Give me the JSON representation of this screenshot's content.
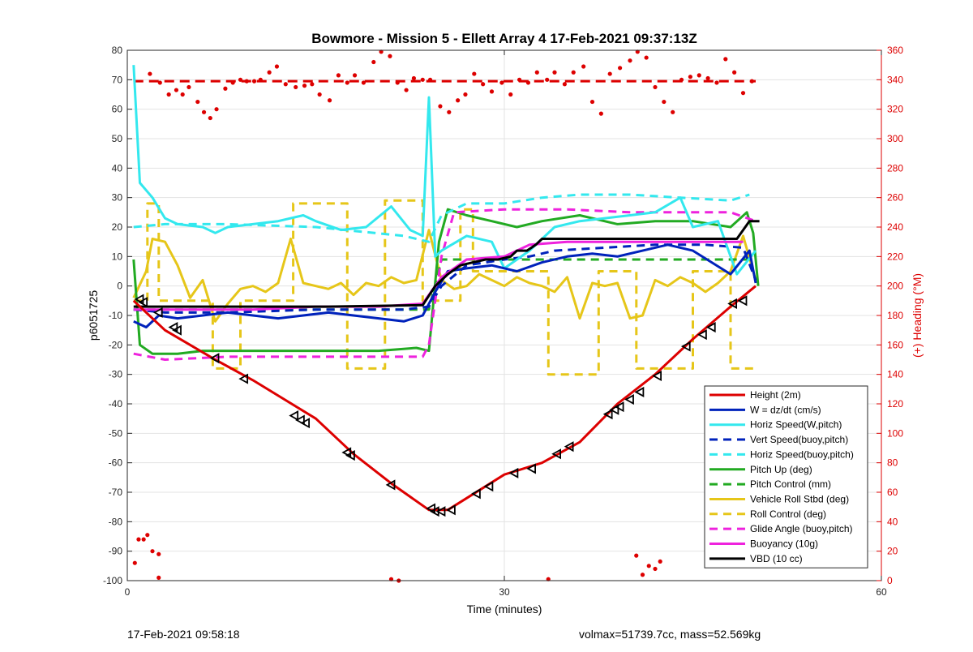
{
  "chart_data": {
    "type": "line",
    "title": "Bowmore - Mission 5 - Ellett Array 4 17-Feb-2021 09:37:13Z",
    "xlabel": "Time (minutes)",
    "ylabel_left": "p6051725",
    "ylabel_right": "(+) Heading (°M)",
    "xlim": [
      0,
      60
    ],
    "ylim_left": [
      -100,
      80
    ],
    "ylim_right": [
      0,
      360
    ],
    "x_ticks": [
      0,
      30,
      60
    ],
    "y_ticks_left": [
      -100,
      -90,
      -80,
      -70,
      -60,
      -50,
      -40,
      -30,
      -20,
      -10,
      0,
      10,
      20,
      30,
      40,
      50,
      60,
      70,
      80
    ],
    "y_ticks_right": [
      0,
      20,
      40,
      60,
      80,
      100,
      120,
      140,
      160,
      180,
      200,
      220,
      240,
      260,
      280,
      300,
      320,
      340,
      360
    ],
    "grid": true,
    "legend_position": "bottom-right",
    "series": [
      {
        "name": "Height (2m)",
        "color": "#dd0000",
        "style": "solid",
        "x": [
          0.5,
          3,
          7,
          10,
          15,
          18,
          21,
          24,
          25.5,
          27,
          30,
          33,
          36,
          39,
          42,
          45,
          48,
          50
        ],
        "y": [
          -5,
          -15,
          -25,
          -32,
          -45,
          -57,
          -67,
          -76,
          -76,
          -72,
          -64,
          -60,
          -53,
          -40,
          -30,
          -18,
          -7,
          0
        ]
      },
      {
        "name": "W = dz/dt (cm/s)",
        "color": "#0022bb",
        "style": "solid",
        "x": [
          0.5,
          1.5,
          2.5,
          4,
          6,
          8,
          10,
          12,
          14,
          16,
          18,
          20,
          22,
          23.5,
          24.5,
          25.5,
          27,
          29,
          31,
          33,
          35,
          37,
          39,
          41,
          43,
          45,
          46.5,
          48,
          49.5,
          50
        ],
        "y": [
          -12,
          -14,
          -10,
          -11,
          -10,
          -9,
          -10,
          -11,
          -10,
          -9,
          -10,
          -11,
          -12,
          -10,
          -2,
          5,
          6,
          7,
          5,
          8,
          10,
          11,
          10,
          12,
          14,
          12,
          8,
          4,
          12,
          1
        ]
      },
      {
        "name": "Horiz Speed(W,pitch)",
        "color": "#33e8ee",
        "style": "solid",
        "x": [
          0.5,
          1,
          2,
          3,
          4,
          6,
          7,
          8,
          10,
          12,
          14,
          15,
          17,
          19,
          21,
          22.5,
          23.5,
          24,
          24.5,
          25,
          27,
          29,
          30,
          32,
          34,
          36,
          38,
          40,
          42,
          44,
          45,
          47,
          48.5,
          50
        ],
        "y": [
          75,
          35,
          30,
          23,
          21,
          20,
          18,
          20,
          21,
          22,
          24,
          22,
          19,
          20,
          27,
          19,
          17,
          64,
          10,
          12,
          17,
          15,
          6,
          12,
          20,
          22,
          23,
          24,
          25,
          30,
          20,
          22,
          4,
          12
        ]
      },
      {
        "name": "Vert Speed(buoy,pitch)",
        "color": "#0022bb",
        "style": "dashed",
        "x": [
          0.5,
          3,
          8,
          15,
          22,
          24,
          25,
          27,
          30,
          32,
          34,
          38,
          42,
          46,
          49,
          50
        ],
        "y": [
          -8,
          -9,
          -9,
          -8,
          -8,
          -7,
          0,
          7,
          9,
          10,
          12,
          13,
          14,
          14,
          13,
          2
        ]
      },
      {
        "name": "Horiz Speed(buoy,pitch)",
        "color": "#33e8ee",
        "style": "dashed",
        "x": [
          0.5,
          3,
          8,
          15,
          22,
          24,
          25,
          27,
          30,
          33,
          36,
          40,
          44,
          48,
          49.5
        ],
        "y": [
          20,
          21,
          21,
          20,
          17,
          15,
          24,
          28,
          28,
          30,
          31,
          31,
          30,
          29,
          31
        ]
      },
      {
        "name": "Pitch Up (deg)",
        "color": "#22aa22",
        "style": "solid",
        "x": [
          0.5,
          1,
          2,
          4,
          6,
          8,
          12,
          16,
          20,
          23,
          24,
          24.8,
          25.5,
          27,
          29,
          31,
          33,
          36,
          39,
          42,
          45,
          48,
          49.3,
          49.8,
          50.2
        ],
        "y": [
          9,
          -20,
          -23,
          -23,
          -22,
          -22,
          -22,
          -22,
          -22,
          -21,
          -22,
          15,
          26,
          24,
          22,
          20,
          22,
          24,
          21,
          22,
          22,
          20,
          25,
          18,
          0
        ]
      },
      {
        "name": "Pitch Control (mm)",
        "color": "#22aa22",
        "style": "dashed",
        "x": [
          0.5,
          24,
          25,
          35,
          50
        ],
        "y": [
          -8,
          -8,
          9,
          9,
          9
        ]
      },
      {
        "name": "Vehicle Roll Stbd (deg)",
        "color": "#e6c619",
        "style": "solid",
        "x": [
          0.5,
          1.5,
          2,
          3,
          4,
          5,
          6,
          7,
          8,
          9,
          10,
          11,
          12,
          13,
          14,
          15,
          16,
          17,
          18,
          19,
          20,
          21,
          22,
          23,
          24,
          25,
          26,
          27,
          28,
          29,
          30,
          31,
          32,
          33,
          34,
          35,
          36,
          37,
          38,
          39,
          40,
          41,
          42,
          43,
          44,
          45,
          46,
          47,
          48,
          49,
          50
        ],
        "y": [
          -4,
          5,
          16,
          15,
          7,
          -4,
          2,
          -12,
          -6,
          -1,
          0,
          -2,
          1,
          16,
          1,
          0,
          -1,
          1,
          -3,
          1,
          0,
          3,
          1,
          2,
          19,
          2,
          -1,
          0,
          4,
          2,
          0,
          3,
          1,
          0,
          -2,
          3,
          -11,
          1,
          0,
          1,
          -11,
          -10,
          2,
          0,
          3,
          1,
          -2,
          1,
          5,
          17,
          2
        ]
      },
      {
        "name": "Roll Control (deg)",
        "color": "#e6c619",
        "style": "dashed",
        "x": [
          0.5,
          1.6,
          1.6,
          2.5,
          2.5,
          6.8,
          6.8,
          9,
          9,
          13.2,
          13.2,
          17.5,
          17.5,
          20.5,
          20.5,
          23.5,
          23.5,
          26.5,
          26.5,
          27.5,
          27.5,
          33.5,
          33.5,
          37.5,
          37.5,
          40.5,
          40.5,
          45,
          45,
          48,
          48,
          50
        ],
        "y": [
          -5,
          -5,
          28,
          28,
          -5,
          -5,
          -28,
          -28,
          -5,
          -5,
          28,
          28,
          -28,
          -28,
          29,
          29,
          -5,
          -5,
          26,
          26,
          5,
          5,
          -30,
          -30,
          5,
          5,
          -28,
          -28,
          5,
          5,
          -28,
          -28
        ]
      },
      {
        "name": "Glide Angle (buoy,pitch)",
        "color": "#ee22dd",
        "style": "dashed",
        "x": [
          0.5,
          3,
          8,
          15,
          20,
          23.5,
          24,
          25,
          26,
          30,
          35,
          40,
          45,
          48,
          50
        ],
        "y": [
          -23,
          -25,
          -24,
          -24,
          -24,
          -24,
          -20,
          10,
          25,
          26,
          26,
          25,
          25,
          25,
          22
        ]
      },
      {
        "name": "Buoyancy (10g)",
        "color": "#ee22dd",
        "style": "solid",
        "x": [
          0.5,
          5,
          10,
          15,
          20,
          23.5,
          25,
          27,
          30,
          32,
          35,
          40,
          45,
          49
        ],
        "y": [
          -8,
          -8,
          -8,
          -7,
          -7,
          -6,
          3,
          9,
          10,
          14,
          15,
          15,
          15,
          15
        ]
      },
      {
        "name": "VBD (10 cc)",
        "color": "#000000",
        "style": "solid",
        "x": [
          0.5,
          8,
          16,
          23.5,
          24.5,
          25.5,
          26.5,
          27.5,
          28.5,
          29.5,
          30.5,
          31,
          31.8,
          32.5,
          33,
          34,
          40,
          45,
          48.5,
          49.5,
          50.3
        ],
        "y": [
          -7,
          -7,
          -7,
          -6.5,
          0,
          4,
          7,
          8,
          9,
          9,
          10,
          12,
          12,
          14,
          16,
          16,
          16,
          16,
          16,
          22,
          22
        ]
      }
    ],
    "heading_mean_deg": 339,
    "heading_series": {
      "name": "(+) Heading (°M)",
      "color": "#dd0000",
      "axis": "right",
      "x": [
        1.8,
        2.6,
        3.3,
        3.9,
        4.4,
        4.9,
        5.6,
        6.1,
        6.6,
        7.1,
        7.8,
        8.4,
        9.0,
        9.5,
        10.1,
        10.6,
        11.3,
        11.9,
        12.6,
        13.4,
        14.1,
        14.7,
        15.3,
        16.1,
        16.8,
        17.5,
        18.1,
        18.8,
        19.6,
        20.2,
        20.9,
        21.5,
        22.2,
        22.8,
        23.5,
        24.1,
        24.9,
        25.6,
        26.3,
        26.9,
        27.6,
        28.3,
        29.0,
        29.8,
        30.5,
        31.2,
        31.9,
        32.6,
        33.4,
        34.0,
        34.8,
        35.5,
        36.3,
        37.0,
        37.7,
        38.4,
        39.2,
        40.0,
        40.6,
        41.3,
        42.0,
        42.7,
        43.4,
        44.1,
        44.8,
        45.5,
        46.2,
        46.9,
        47.6,
        48.3,
        49.0,
        49.7
      ],
      "y": [
        344,
        338,
        330,
        333,
        330,
        335,
        325,
        318,
        314,
        320,
        334,
        338,
        340,
        339,
        339,
        340,
        345,
        349,
        337,
        335,
        336,
        337,
        330,
        326,
        343,
        338,
        343,
        338,
        352,
        359,
        356,
        338,
        333,
        341,
        340,
        340,
        322,
        318,
        326,
        330,
        344,
        337,
        332,
        338,
        330,
        340,
        338,
        345,
        340,
        345,
        337,
        345,
        349,
        325,
        317,
        344,
        348,
        353,
        359,
        355,
        335,
        325,
        318,
        340,
        342,
        343,
        341,
        338,
        354,
        345,
        331,
        339
      ]
    },
    "heading_outliers": {
      "x": [
        0.6,
        0.9,
        1.3,
        1.6,
        2.0,
        2.5,
        2.5,
        21.0,
        21.6,
        33.5,
        40.5,
        41.0,
        41.5,
        42.0,
        42.4,
        49.3
      ],
      "y": [
        12,
        28,
        28,
        31,
        20,
        18,
        2,
        1,
        0,
        1,
        17,
        4,
        10,
        8,
        13,
        12
      ]
    },
    "markers": {
      "shape": "left-pointing triangle",
      "x": [
        1.0,
        1.3,
        2.5,
        3.7,
        4.0,
        7.0,
        9.3,
        13.3,
        13.8,
        14.2,
        17.5,
        17.8,
        21.0,
        24.2,
        24.5,
        25.0,
        25.8,
        27.8,
        28.8,
        30.8,
        32.2,
        34.2,
        35.2,
        38.3,
        38.8,
        39.2,
        40.0,
        40.8,
        42.2,
        44.5,
        45.8,
        46.5,
        48.2,
        49.0
      ],
      "y": [
        -4.5,
        -5.5,
        -9,
        -14,
        -15,
        -24.5,
        -31.5,
        -44,
        -45.5,
        -46.5,
        -56.5,
        -57.5,
        -67.5,
        -75.5,
        -76.5,
        -76.5,
        -76,
        -70.5,
        -68,
        -63.5,
        -62,
        -57,
        -54.5,
        -43.5,
        -42,
        -41,
        -38.5,
        -36,
        -30.5,
        -20.5,
        -16.5,
        -14,
        -6,
        -5
      ]
    }
  },
  "footer": {
    "left": "17-Feb-2021 09:58:18",
    "right": "volmax=51739.7cc, mass=52.569kg"
  }
}
